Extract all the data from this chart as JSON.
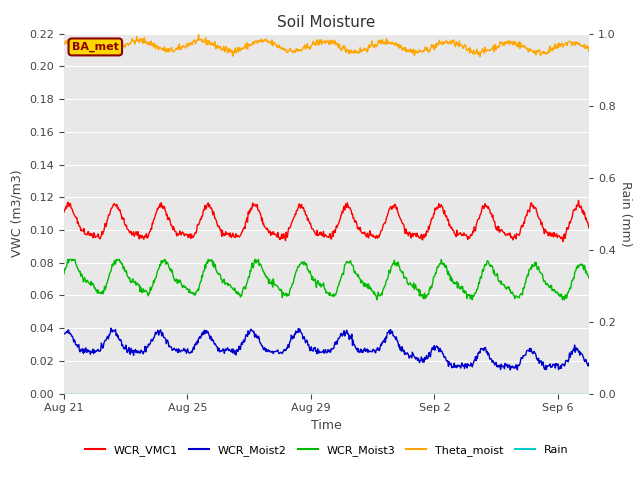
{
  "title": "Soil Moisture",
  "xlabel": "Time",
  "ylabel_left": "VWC (m3/m3)",
  "ylabel_right": "Rain (mm)",
  "ylim_left": [
    0.0,
    0.22
  ],
  "ylim_right": [
    0.0,
    1.0
  ],
  "yticks_left": [
    0.0,
    0.02,
    0.04,
    0.06,
    0.08,
    0.1,
    0.12,
    0.14,
    0.16,
    0.18,
    0.2,
    0.22
  ],
  "yticks_right_vals": [
    0.0,
    0.2,
    0.4,
    0.6,
    0.8,
    1.0
  ],
  "yticks_right_labels": [
    "0.0",
    "0.2",
    "0.4",
    "0.6",
    "0.8",
    "1.0"
  ],
  "xtick_positions": [
    0,
    4,
    8,
    12,
    16
  ],
  "xtick_labels": [
    "Aug 21",
    "Aug 25",
    "Aug 29",
    "Sep 2",
    "Sep 6"
  ],
  "annotation_text": "BA_met",
  "annotation_color": "#8B0000",
  "annotation_bg": "#FFD700",
  "fig_bg": "#FFFFFF",
  "plot_bg": "#E8E8E8",
  "colors": {
    "WCR_VMC1": "#FF0000",
    "WCR_Moist2": "#0000CC",
    "WCR_Moist3": "#00BB00",
    "Theta_moist": "#FFA500",
    "Rain": "#00CCCC"
  },
  "n_days": 17,
  "xlim": [
    0,
    17
  ]
}
